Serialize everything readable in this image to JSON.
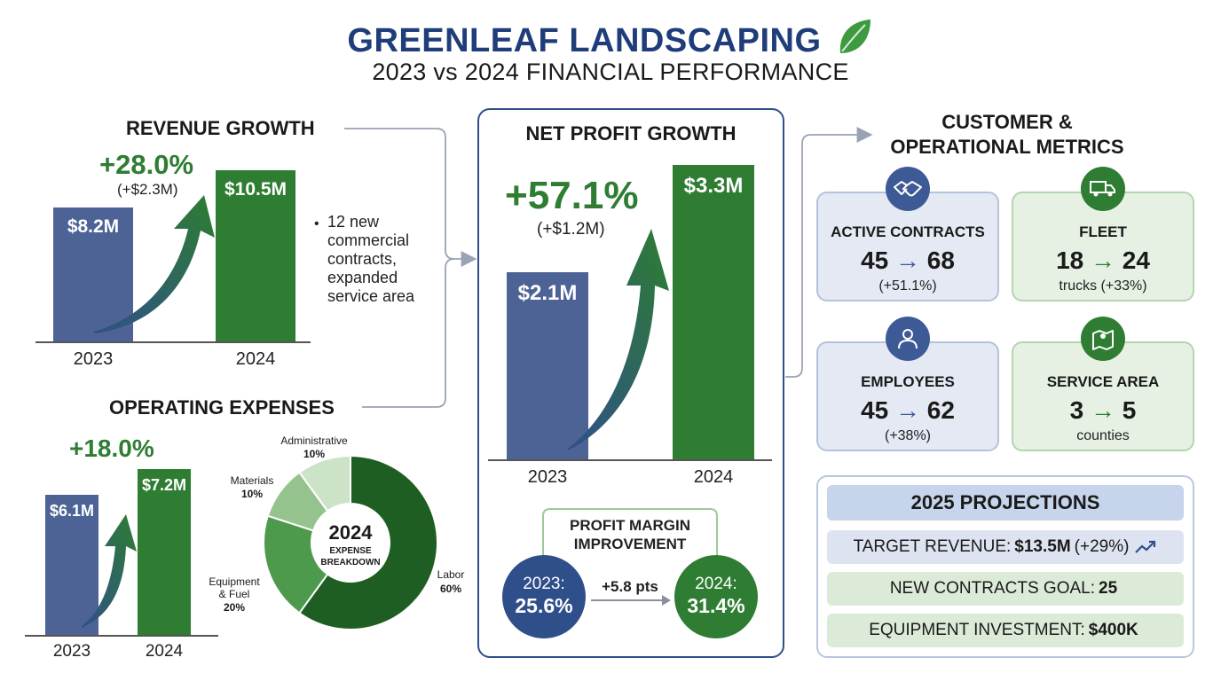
{
  "header": {
    "title": "GREENLEAF LANDSCAPING",
    "subtitle": "2023 vs 2024 FINANCIAL PERFORMANCE"
  },
  "colors": {
    "navy": "#3d5a96",
    "green": "#2e7d32",
    "title_blue": "#1f3d7a"
  },
  "revenue": {
    "title": "REVENUE GROWTH",
    "growth_pct": "+28.0%",
    "growth_abs": "(+$2.3M)",
    "note": "12 new commercial contracts, expanded service area",
    "note_lines": [
      "12 new",
      "commercial",
      "contracts,",
      "expanded",
      "service area"
    ]
  },
  "expenses": {
    "title": "OPERATING EXPENSES",
    "growth_pct": "+18.0%",
    "donut_center_year": "2024",
    "donut_center_label_1": "EXPENSE",
    "donut_center_label_2": "BREAKDOWN"
  },
  "net_profit": {
    "title": "NET PROFIT GROWTH",
    "growth_pct": "+57.1%",
    "growth_abs": "(+$1.2M)"
  },
  "margin": {
    "title_1": "PROFIT MARGIN",
    "title_2": "IMPROVEMENT",
    "y2023_label": "2023:",
    "y2023_value": "25.6%",
    "change": "+5.8 pts",
    "y2024_label": "2024:",
    "y2024_value": "31.4%"
  },
  "metrics": {
    "title_1": "CUSTOMER &",
    "title_2": "OPERATIONAL METRICS",
    "cards": [
      {
        "label": "ACTIVE CONTRACTS",
        "from": "45",
        "to": "68",
        "note": "(+51.1%)",
        "icon": "handshake-icon"
      },
      {
        "label": "FLEET",
        "from": "18",
        "to": "24",
        "note": "trucks (+33%)",
        "icon": "truck-icon"
      },
      {
        "label": "EMPLOYEES",
        "from": "45",
        "to": "62",
        "note": "(+38%)",
        "icon": "person-icon"
      },
      {
        "label": "SERVICE AREA",
        "from": "3",
        "to": "5",
        "note": "counties",
        "icon": "map-pin-icon"
      }
    ],
    "arrow_glyph": "→"
  },
  "projections": {
    "title": "2025 PROJECTIONS",
    "rows": [
      {
        "label": "TARGET REVENUE:",
        "value": "$13.5M",
        "extra": "(+29%)"
      },
      {
        "label": "NEW CONTRACTS GOAL:",
        "value": "25",
        "extra": ""
      },
      {
        "label": "EQUIPMENT INVESTMENT:",
        "value": "$400K",
        "extra": ""
      }
    ]
  },
  "chart_data": [
    {
      "type": "bar",
      "title": "REVENUE GROWTH",
      "categories": [
        "2023",
        "2024"
      ],
      "values": [
        8.2,
        10.5
      ],
      "value_labels": [
        "$8.2M",
        "$10.5M"
      ],
      "units": "$M",
      "ylim": [
        0,
        10.5
      ]
    },
    {
      "type": "bar",
      "title": "OPERATING EXPENSES",
      "categories": [
        "2023",
        "2024"
      ],
      "values": [
        6.1,
        7.2
      ],
      "value_labels": [
        "$6.1M",
        "$7.2M"
      ],
      "units": "$M",
      "ylim": [
        0,
        7.2
      ]
    },
    {
      "type": "pie",
      "title": "2024 EXPENSE BREAKDOWN",
      "categories": [
        "Labor",
        "Equipment & Fuel",
        "Materials",
        "Administrative"
      ],
      "label_lines": [
        [
          "Labor"
        ],
        [
          "Equipment",
          "& Fuel"
        ],
        [
          "Materials"
        ],
        [
          "Administrative"
        ]
      ],
      "values": [
        60,
        20,
        10,
        10
      ],
      "value_labels": [
        "60%",
        "20%",
        "10%",
        "10%"
      ],
      "colors": [
        "#1e5e22",
        "#4e9a4c",
        "#95c38e",
        "#cde3c8"
      ]
    },
    {
      "type": "bar",
      "title": "NET PROFIT GROWTH",
      "categories": [
        "2023",
        "2024"
      ],
      "values": [
        2.1,
        3.3
      ],
      "value_labels": [
        "$2.1M",
        "$3.3M"
      ],
      "units": "$M",
      "ylim": [
        0,
        3.3
      ]
    }
  ]
}
